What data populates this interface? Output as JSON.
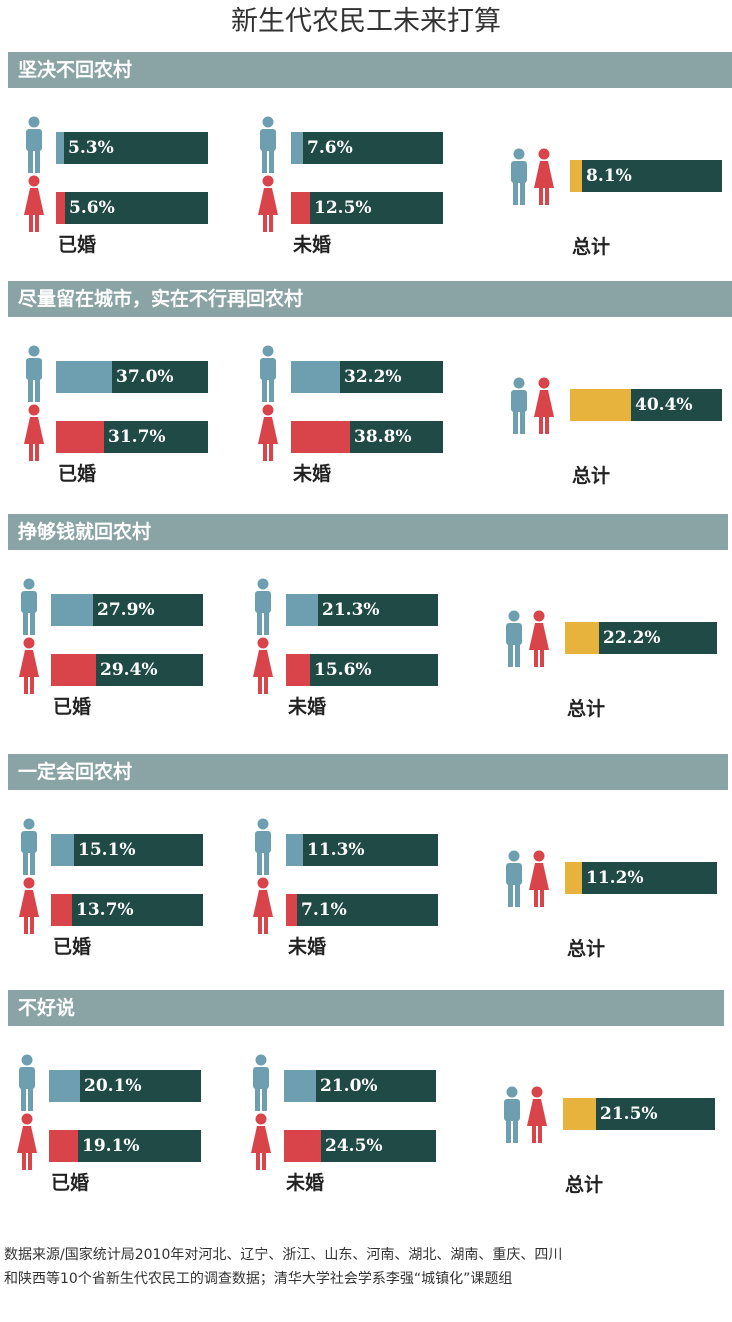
{
  "title": "新生代农民工未来打算",
  "colors": {
    "header_bg": "#8aa3a4",
    "track": "#1f4a45",
    "male": "#6e9fb0",
    "female": "#d9434a",
    "total": "#e8b33c"
  },
  "icons": {
    "male": "man-icon",
    "female": "woman-icon",
    "total": "couple-icon"
  },
  "group_labels": {
    "married": "已婚",
    "unmarried": "未婚",
    "total": "总计"
  },
  "chart_data": {
    "type": "bar",
    "unit": "%",
    "xlim": [
      0,
      100
    ],
    "categories": [
      "坚决不回农村",
      "尽量留在城市，实在不行再回农村",
      "挣够钱就回农村",
      "一定会回农村",
      "不好说"
    ],
    "series": [
      {
        "name": "已婚 男",
        "values": [
          5.3,
          37.0,
          27.9,
          15.1,
          20.1
        ],
        "labels": [
          "5.3%",
          "37.0%",
          "27.9%",
          "15.1%",
          "20.1%"
        ]
      },
      {
        "name": "已婚 女",
        "values": [
          5.6,
          31.7,
          29.4,
          13.7,
          19.1
        ],
        "labels": [
          "5.6%",
          "31.7%",
          "29.4%",
          "13.7%",
          "19.1%"
        ]
      },
      {
        "name": "未婚 男",
        "values": [
          7.6,
          32.2,
          21.3,
          11.3,
          21.0
        ],
        "labels": [
          "7.6%",
          "32.2%",
          "21.3%",
          "11.3%",
          "21.0%"
        ]
      },
      {
        "name": "未婚 女",
        "values": [
          12.5,
          38.8,
          15.6,
          7.1,
          24.5
        ],
        "labels": [
          "12.5%",
          "38.8%",
          "15.6%",
          "7.1%",
          "24.5%"
        ]
      },
      {
        "name": "总计",
        "values": [
          8.1,
          40.4,
          22.2,
          11.2,
          21.5
        ],
        "labels": [
          "8.1%",
          "40.4%",
          "22.2%",
          "11.2%",
          "21.5%"
        ]
      }
    ]
  },
  "footnote": {
    "line1": "数据来源/国家统计局2010年对河北、辽宁、浙江、山东、河南、湖北、湖南、重庆、四川",
    "line2": "和陕西等10个省新生代农民工的调查数据；清华大学社会学系李强“城镇化”课题组"
  }
}
